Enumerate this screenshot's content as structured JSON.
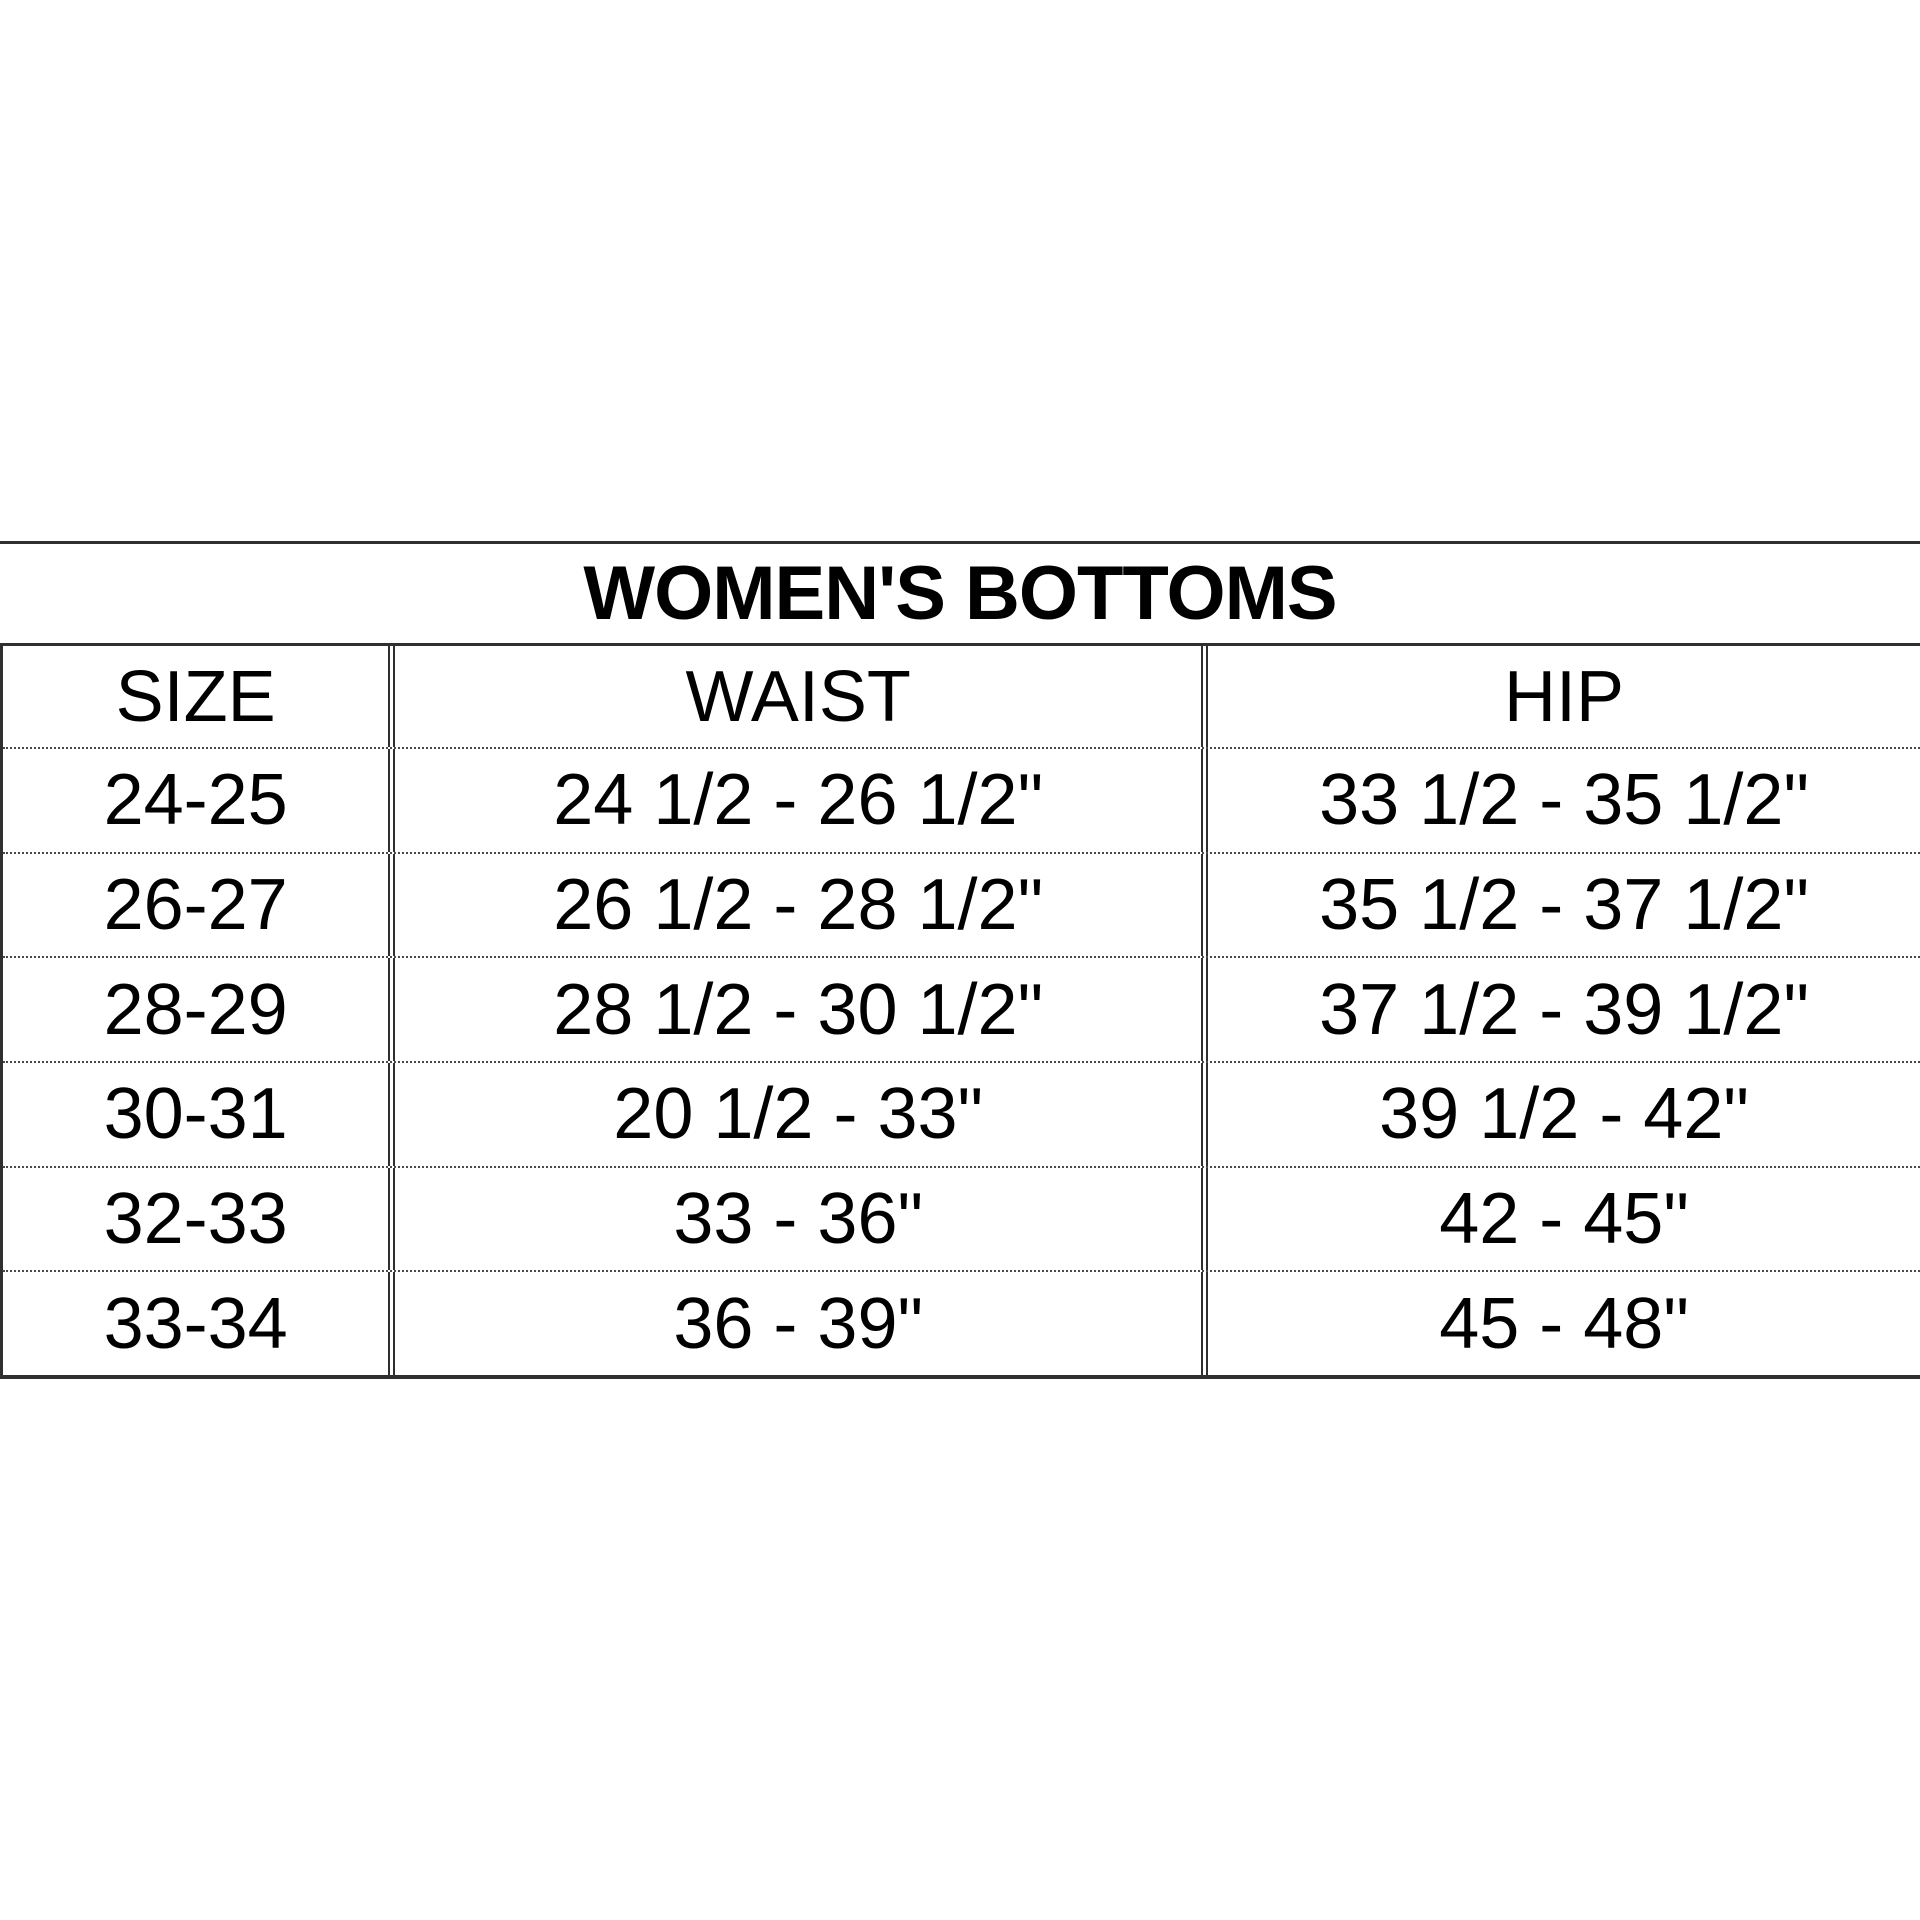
{
  "chart_data": {
    "type": "table",
    "title": "WOMEN'S BOTTOMS",
    "columns": [
      "SIZE",
      "WAIST",
      "HIP"
    ],
    "rows": [
      [
        "24-25",
        "24 1/2 - 26 1/2\"",
        "33 1/2 - 35 1/2\""
      ],
      [
        "26-27",
        "26 1/2 - 28 1/2\"",
        "35 1/2 - 37 1/2\""
      ],
      [
        "28-29",
        "28 1/2 - 30 1/2\"",
        "37 1/2 - 39 1/2\""
      ],
      [
        "30-31",
        "20 1/2 - 33\"",
        "39 1/2 - 42\""
      ],
      [
        "32-33",
        "33 - 36\"",
        "42 - 45\""
      ],
      [
        "33-34",
        "36 - 39\"",
        "45 - 48\""
      ]
    ],
    "layout": {
      "title_row": "spans full width, solid top and bottom rules",
      "row_separators": "thin dotted lines",
      "column_separators": "double vertical lines",
      "right_edge": "table clipped at image right edge, no right border",
      "legend": "none"
    },
    "colors": {
      "text": "#000000",
      "line": "#2f2f2f",
      "dotted_line": "#4a4a4a",
      "background": "#ffffff"
    }
  }
}
